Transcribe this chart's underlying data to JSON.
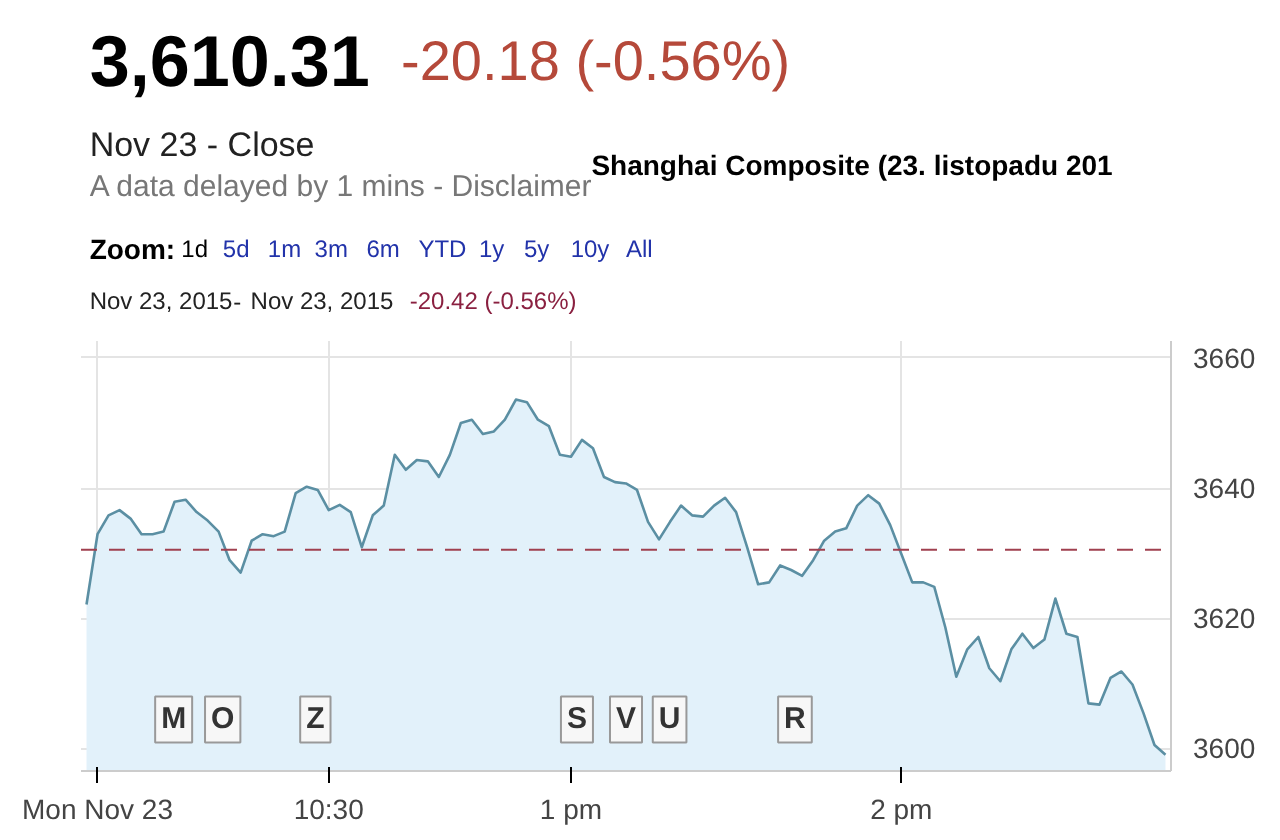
{
  "chart_data": {
    "type": "area",
    "title": "Shanghai Composite (23. listopadu 201",
    "annotations": [
      "3,610.31",
      "-20.18 (-0.56%)",
      "Nov 23 - Close",
      "A data delayed by 1 mins - Disclaimer",
      "Zoom:",
      "1d",
      "5d",
      "1m",
      "3m",
      "6m",
      "YTD",
      "1y",
      "5y",
      "10y",
      "All",
      "Nov 23, 2015",
      "-",
      "Nov 23, 2015",
      "-20.42 (-0.56%)",
      "M",
      "O",
      "Z",
      "S",
      "V",
      "U",
      "R"
    ],
    "categories": [
      null,
      "Mon Nov 23",
      null,
      null,
      null,
      null,
      null,
      null,
      null,
      null,
      null,
      null,
      null,
      null,
      null,
      null,
      null,
      null,
      null,
      null,
      null,
      null,
      "10:30",
      null,
      null,
      null,
      null,
      null,
      null,
      null,
      null,
      null,
      null,
      null,
      null,
      null,
      null,
      null,
      null,
      null,
      null,
      null,
      null,
      null,
      "1 pm",
      null,
      null,
      null,
      null,
      null,
      null,
      null,
      null,
      null,
      null,
      null,
      null,
      null,
      null,
      null,
      null,
      null,
      null,
      null,
      null,
      null,
      null,
      null,
      null,
      null,
      null,
      null,
      null,
      null,
      "2 pm",
      null,
      null,
      null,
      null,
      null,
      null,
      null,
      null,
      null,
      null,
      null,
      null,
      null,
      null,
      null,
      null,
      null,
      null,
      null,
      null,
      null,
      null,
      null,
      null
    ],
    "series": [
      {
        "color": "#5b8fa3",
        "values": [
          3622.1,
          3632.9,
          3635.8,
          3636.6,
          3635.3,
          3632.9,
          3632.9,
          3633.3,
          3637.9,
          3638.2,
          3636.3,
          3635.0,
          3633.3,
          3628.9,
          3627.0,
          3631.9,
          3632.9,
          3632.6,
          3633.3,
          3639.2,
          3640.2,
          3639.7,
          3636.6,
          3637.4,
          3636.3,
          3630.9,
          3635.8,
          3637.3,
          3645.1,
          3642.8,
          3644.3,
          3644.1,
          3641.7,
          3645.1,
          3650.0,
          3650.5,
          3648.3,
          3648.7,
          3650.5,
          3653.6,
          3653.2,
          3650.5,
          3649.5,
          3645.1,
          3644.8,
          3647.4,
          3646.1,
          3641.7,
          3640.9,
          3640.7,
          3639.7,
          3634.8,
          3632.1,
          3634.8,
          3637.3,
          3635.8,
          3635.6,
          3637.3,
          3638.5,
          3636.3,
          3630.9,
          3625.2,
          3625.5,
          3628.1,
          3627.4,
          3626.5,
          3628.9,
          3631.9,
          3633.3,
          3633.8,
          3637.3,
          3638.9,
          3637.6,
          3634.3,
          3629.9,
          3625.5,
          3625.5,
          3624.8,
          3618.6,
          3611.0,
          3615.2,
          3617.1,
          3612.3,
          3610.3,
          3615.2,
          3617.6,
          3615.4,
          3616.7,
          3623.0,
          3617.6,
          3617.1,
          3606.9,
          3606.7,
          3610.8,
          3611.8,
          3609.8,
          3605.4,
          3600.5,
          3599.0
        ]
      }
    ],
    "ylim": [
      3596.5,
      3662.6
    ],
    "yticks": [
      3600,
      3620,
      3640,
      3660
    ],
    "ref_lines": [
      {
        "axis": "y",
        "value": 3630.5,
        "color": "#a0404f",
        "line_style": "dashed"
      }
    ],
    "grid": true
  }
}
